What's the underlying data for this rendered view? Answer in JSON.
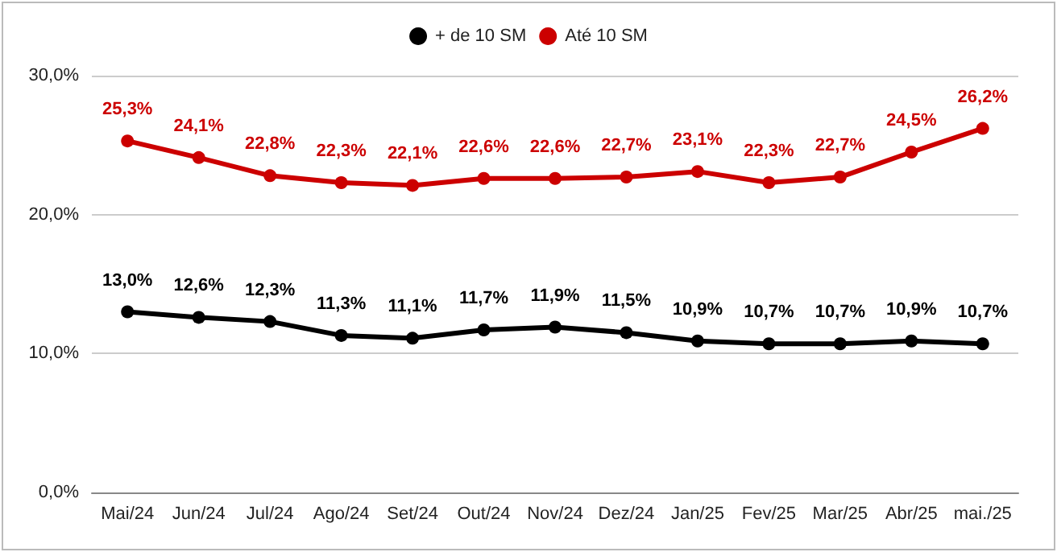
{
  "chart_data": {
    "type": "line",
    "categories": [
      "Mai/24",
      "Jun/24",
      "Jul/24",
      "Ago/24",
      "Set/24",
      "Out/24",
      "Nov/24",
      "Dez/24",
      "Jan/25",
      "Fev/25",
      "Mar/25",
      "Abr/25",
      "mai./25"
    ],
    "series": [
      {
        "name": "+ de 10 SM",
        "color": "#000000",
        "values": [
          13.0,
          12.6,
          12.3,
          11.3,
          11.1,
          11.7,
          11.9,
          11.5,
          10.9,
          10.7,
          10.7,
          10.9,
          10.7
        ],
        "value_labels": [
          "13,0%",
          "12,6%",
          "12,3%",
          "11,3%",
          "11,1%",
          "11,7%",
          "11,9%",
          "11,5%",
          "10,9%",
          "10,7%",
          "10,7%",
          "10,9%",
          "10,7%"
        ]
      },
      {
        "name": "Até 10 SM",
        "color": "#cc0000",
        "values": [
          25.3,
          24.1,
          22.8,
          22.3,
          22.1,
          22.6,
          22.6,
          22.7,
          23.1,
          22.3,
          22.7,
          24.5,
          26.2
        ],
        "value_labels": [
          "25,3%",
          "24,1%",
          "22,8%",
          "22,3%",
          "22,1%",
          "22,6%",
          "22,6%",
          "22,7%",
          "23,1%",
          "22,3%",
          "22,7%",
          "24,5%",
          "26,2%"
        ]
      }
    ],
    "ylim": [
      0,
      30
    ],
    "yticks": [
      {
        "value": 0,
        "label": "0,0%"
      },
      {
        "value": 10,
        "label": "10,0%"
      },
      {
        "value": 20,
        "label": "20,0%"
      },
      {
        "value": 30,
        "label": "30,0%"
      }
    ],
    "grid": "y",
    "legend": "top",
    "marker": "circle",
    "line_style": "solid"
  }
}
